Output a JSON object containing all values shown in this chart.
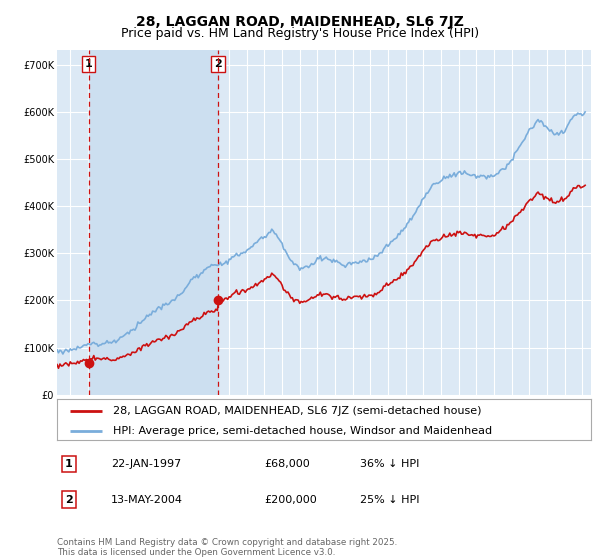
{
  "title": "28, LAGGAN ROAD, MAIDENHEAD, SL6 7JZ",
  "subtitle": "Price paid vs. HM Land Registry's House Price Index (HPI)",
  "ylabel_ticks": [
    "£0",
    "£100K",
    "£200K",
    "£300K",
    "£400K",
    "£500K",
    "£600K",
    "£700K"
  ],
  "ytick_values": [
    0,
    100000,
    200000,
    300000,
    400000,
    500000,
    600000,
    700000
  ],
  "ylim": [
    0,
    730000
  ],
  "xlim_start": 1995.25,
  "xlim_end": 2025.5,
  "background_color": "#dce9f5",
  "plot_bg_color": "#dce9f5",
  "grid_color": "#ffffff",
  "hpi_color": "#7aaddb",
  "price_color": "#cc1111",
  "dashed_line_color": "#cc1111",
  "shade_color": "#c8dcf0",
  "purchase1_year": 1997.05,
  "purchase1_price": 68000,
  "purchase2_year": 2004.37,
  "purchase2_price": 200000,
  "legend1_label": "28, LAGGAN ROAD, MAIDENHEAD, SL6 7JZ (semi-detached house)",
  "legend2_label": "HPI: Average price, semi-detached house, Windsor and Maidenhead",
  "annotation1_label": "1",
  "annotation1_date": "22-JAN-1997",
  "annotation1_price": "£68,000",
  "annotation1_hpi": "36% ↓ HPI",
  "annotation2_label": "2",
  "annotation2_date": "13-MAY-2004",
  "annotation2_price": "£200,000",
  "annotation2_hpi": "25% ↓ HPI",
  "footer": "Contains HM Land Registry data © Crown copyright and database right 2025.\nThis data is licensed under the Open Government Licence v3.0.",
  "title_fontsize": 10,
  "subtitle_fontsize": 9,
  "tick_fontsize": 7,
  "legend_fontsize": 8
}
